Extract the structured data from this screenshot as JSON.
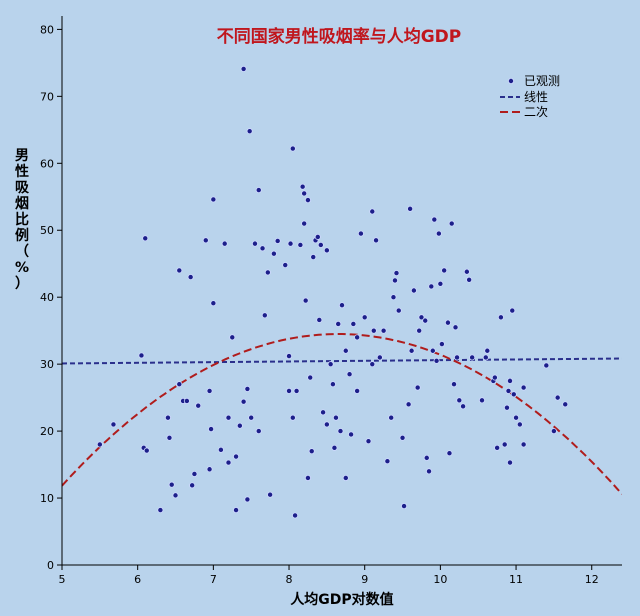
{
  "chart_data": {
    "type": "scatter",
    "title": "不同国家男性吸烟率与人均GDP",
    "xlabel": "人均GDP对数值",
    "ylabel": "男性吸烟比例（%）",
    "xlim": [
      5,
      12.4
    ],
    "ylim": [
      0,
      82
    ],
    "x_ticks": [
      5,
      6,
      7,
      8,
      9,
      10,
      11,
      12
    ],
    "y_ticks": [
      0,
      10,
      20,
      30,
      40,
      50,
      60,
      70,
      80
    ],
    "grid": false,
    "legend_position": "top-right",
    "legend": [
      "已观测",
      "线性",
      "二次"
    ],
    "colors": {
      "background": "#b9d3ec",
      "points": "#1c1f8a",
      "linear": "#2a2f8c",
      "quadratic": "#b01c1c",
      "title": "#c0161d"
    },
    "series": [
      {
        "name": "已观测",
        "kind": "scatter",
        "points": [
          [
            5.5,
            18
          ],
          [
            5.68,
            21
          ],
          [
            6.05,
            31.3
          ],
          [
            6.08,
            17.5
          ],
          [
            6.12,
            17.1
          ],
          [
            6.1,
            48.8
          ],
          [
            6.3,
            8.2
          ],
          [
            6.4,
            22
          ],
          [
            6.42,
            19
          ],
          [
            6.45,
            12
          ],
          [
            6.5,
            10.4
          ],
          [
            6.55,
            27
          ],
          [
            6.55,
            44
          ],
          [
            6.6,
            24.5
          ],
          [
            6.65,
            24.5
          ],
          [
            6.7,
            43
          ],
          [
            6.72,
            11.9
          ],
          [
            6.75,
            13.6
          ],
          [
            6.8,
            23.8
          ],
          [
            6.9,
            48.5
          ],
          [
            6.95,
            26
          ],
          [
            6.95,
            14.3
          ],
          [
            6.97,
            20.3
          ],
          [
            7.0,
            39.1
          ],
          [
            7.0,
            54.6
          ],
          [
            7.1,
            17.2
          ],
          [
            7.15,
            48
          ],
          [
            7.2,
            22
          ],
          [
            7.2,
            15.3
          ],
          [
            7.25,
            34
          ],
          [
            7.3,
            8.2
          ],
          [
            7.3,
            16.2
          ],
          [
            7.35,
            20.8
          ],
          [
            7.4,
            24.4
          ],
          [
            7.4,
            74.1
          ],
          [
            7.45,
            26.3
          ],
          [
            7.45,
            9.8
          ],
          [
            7.48,
            64.8
          ],
          [
            7.5,
            22
          ],
          [
            7.55,
            48
          ],
          [
            7.6,
            56
          ],
          [
            7.6,
            20
          ],
          [
            7.65,
            47.3
          ],
          [
            7.68,
            37.3
          ],
          [
            7.72,
            43.7
          ],
          [
            7.75,
            10.5
          ],
          [
            7.8,
            46.5
          ],
          [
            7.85,
            48.4
          ],
          [
            7.95,
            44.8
          ],
          [
            8.0,
            26
          ],
          [
            8.0,
            31.2
          ],
          [
            8.02,
            48
          ],
          [
            8.05,
            62.2
          ],
          [
            8.05,
            22
          ],
          [
            8.08,
            7.4
          ],
          [
            8.1,
            26
          ],
          [
            8.15,
            47.8
          ],
          [
            8.18,
            56.5
          ],
          [
            8.2,
            55.5
          ],
          [
            8.2,
            51
          ],
          [
            8.22,
            39.5
          ],
          [
            8.25,
            54.5
          ],
          [
            8.25,
            13
          ],
          [
            8.28,
            28
          ],
          [
            8.3,
            17
          ],
          [
            8.32,
            46
          ],
          [
            8.35,
            48.5
          ],
          [
            8.38,
            49
          ],
          [
            8.4,
            36.6
          ],
          [
            8.42,
            47.8
          ],
          [
            8.45,
            22.8
          ],
          [
            8.5,
            47
          ],
          [
            8.5,
            21
          ],
          [
            8.55,
            30
          ],
          [
            8.58,
            27
          ],
          [
            8.6,
            17.5
          ],
          [
            8.62,
            22
          ],
          [
            8.65,
            36
          ],
          [
            8.68,
            20
          ],
          [
            8.7,
            38.8
          ],
          [
            8.75,
            13
          ],
          [
            8.75,
            32
          ],
          [
            8.8,
            28.5
          ],
          [
            8.82,
            19.5
          ],
          [
            8.85,
            36
          ],
          [
            8.9,
            26
          ],
          [
            8.9,
            34
          ],
          [
            8.95,
            49.5
          ],
          [
            9.0,
            37
          ],
          [
            9.05,
            18.5
          ],
          [
            9.1,
            30
          ],
          [
            9.1,
            52.8
          ],
          [
            9.12,
            35
          ],
          [
            9.15,
            48.5
          ],
          [
            9.2,
            31
          ],
          [
            9.25,
            35
          ],
          [
            9.3,
            15.5
          ],
          [
            9.35,
            22
          ],
          [
            9.38,
            40
          ],
          [
            9.4,
            42.5
          ],
          [
            9.42,
            43.6
          ],
          [
            9.45,
            38
          ],
          [
            9.5,
            19
          ],
          [
            9.52,
            8.8
          ],
          [
            9.58,
            24
          ],
          [
            9.6,
            53.2
          ],
          [
            9.62,
            32
          ],
          [
            9.65,
            41
          ],
          [
            9.7,
            26.5
          ],
          [
            9.72,
            35
          ],
          [
            9.75,
            37
          ],
          [
            9.8,
            36.5
          ],
          [
            9.82,
            16
          ],
          [
            9.85,
            14
          ],
          [
            9.88,
            41.6
          ],
          [
            9.9,
            32
          ],
          [
            9.92,
            51.6
          ],
          [
            9.95,
            30.5
          ],
          [
            9.98,
            49.5
          ],
          [
            10.0,
            42
          ],
          [
            10.02,
            33
          ],
          [
            10.05,
            44
          ],
          [
            10.1,
            36.2
          ],
          [
            10.12,
            16.7
          ],
          [
            10.15,
            51
          ],
          [
            10.18,
            27
          ],
          [
            10.2,
            35.5
          ],
          [
            10.22,
            31
          ],
          [
            10.25,
            24.6
          ],
          [
            10.3,
            23.7
          ],
          [
            10.35,
            43.8
          ],
          [
            10.38,
            42.6
          ],
          [
            10.42,
            31
          ],
          [
            10.55,
            24.6
          ],
          [
            10.6,
            31
          ],
          [
            10.62,
            32
          ],
          [
            10.7,
            27.5
          ],
          [
            10.72,
            28
          ],
          [
            10.75,
            17.5
          ],
          [
            10.8,
            37
          ],
          [
            10.85,
            18
          ],
          [
            10.88,
            23.5
          ],
          [
            10.9,
            26
          ],
          [
            10.92,
            15.3
          ],
          [
            10.92,
            27.5
          ],
          [
            10.95,
            38
          ],
          [
            10.97,
            25.5
          ],
          [
            11.0,
            22
          ],
          [
            11.05,
            21
          ],
          [
            11.1,
            18
          ],
          [
            11.1,
            26.5
          ],
          [
            11.4,
            29.8
          ],
          [
            11.5,
            20
          ],
          [
            11.55,
            25
          ],
          [
            11.65,
            24
          ]
        ]
      },
      {
        "name": "线性",
        "kind": "linear",
        "intercept": 30.1,
        "slope": 0.1
      },
      {
        "name": "二次",
        "kind": "quadratic",
        "vertex_x": 8.65,
        "vertex_y": 34.5,
        "curvature": -1.7
      }
    ]
  }
}
